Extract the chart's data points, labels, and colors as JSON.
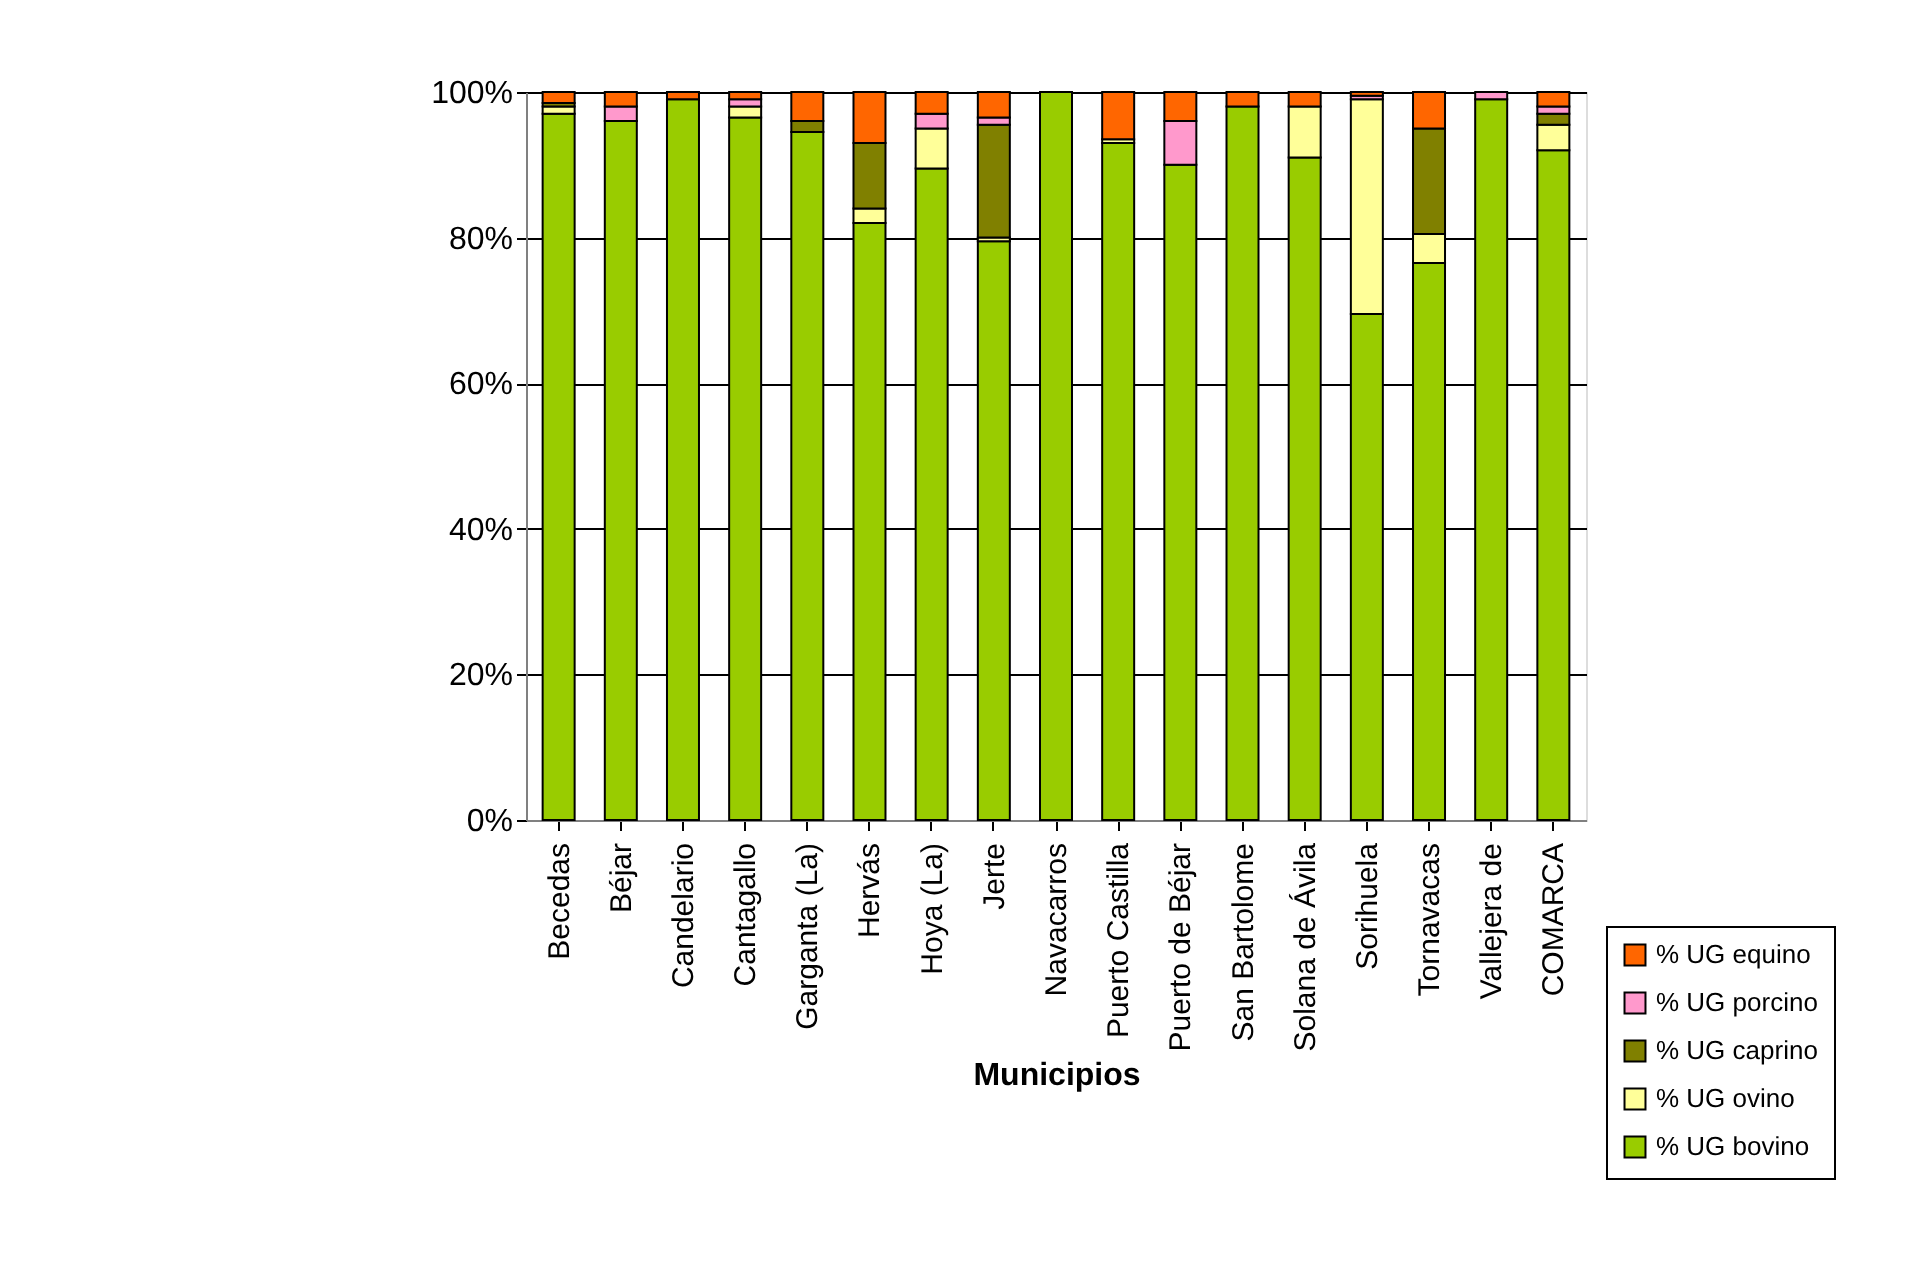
{
  "chart_data": {
    "type": "bar",
    "stacked": true,
    "xlabel": "Municipios",
    "categories": [
      "Becedas",
      "Béjar",
      "Candelario",
      "Cantagallo",
      "Garganta (La)",
      "Hervás",
      "Hoya (La)",
      "Jerte",
      "Navacarros",
      "Puerto Castilla",
      "Puerto de Béjar",
      "San Bartolome",
      "Solana de Ávila",
      "Sorihuela",
      "Tornavacas",
      "Vallejera de",
      "COMARCA"
    ],
    "series": [
      {
        "name": "% UG bovino",
        "color": "#99cc00",
        "values": [
          97,
          96,
          99,
          96.5,
          94.5,
          82,
          89.5,
          79.5,
          100,
          93,
          90,
          98,
          91,
          69.5,
          76.5,
          99,
          92
        ]
      },
      {
        "name": "% UG ovino",
        "color": "#ffff99",
        "values": [
          1,
          0,
          0,
          1.5,
          0,
          2,
          5.5,
          0.5,
          0,
          0.5,
          0,
          0,
          7,
          29.5,
          4,
          0,
          3.5
        ]
      },
      {
        "name": "% UG caprino",
        "color": "#808000",
        "values": [
          0.5,
          0,
          0,
          0,
          1.5,
          9,
          0,
          15.5,
          0,
          0,
          0,
          0,
          0,
          0,
          14.5,
          0,
          1.5
        ]
      },
      {
        "name": "% UG porcino",
        "color": "#ff99cc",
        "values": [
          0,
          2,
          0,
          1,
          0,
          0,
          2,
          1,
          0,
          0,
          6,
          0,
          0,
          0.5,
          0,
          1,
          1
        ]
      },
      {
        "name": "% UG equino",
        "color": "#ff6600",
        "values": [
          1.5,
          2,
          1,
          1,
          4,
          7,
          3,
          3.5,
          0,
          6.5,
          4,
          2,
          2,
          0.5,
          5,
          0,
          2
        ]
      }
    ],
    "ylim": [
      0,
      100
    ],
    "yticks": [
      {
        "value": 0,
        "label": "0%"
      },
      {
        "value": 20,
        "label": "20%"
      },
      {
        "value": 40,
        "label": "40%"
      },
      {
        "value": 60,
        "label": "60%"
      },
      {
        "value": 80,
        "label": "80%"
      },
      {
        "value": 100,
        "label": "100%"
      }
    ],
    "grid": "y",
    "legend": "bottom right"
  }
}
